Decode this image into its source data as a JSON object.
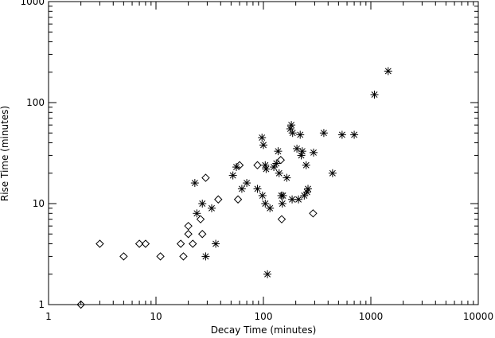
{
  "chart_data": {
    "type": "scatter",
    "title": "",
    "xlabel": "Decay Time (minutes)",
    "ylabel": "Rise Time (minutes)",
    "xscale": "log",
    "yscale": "log",
    "xlim": [
      1,
      10000
    ],
    "ylim": [
      1,
      1000
    ],
    "x_ticks": [
      1,
      10,
      100,
      1000,
      10000
    ],
    "x_tick_labels": [
      "1",
      "10",
      "100",
      "1000",
      "10000"
    ],
    "y_ticks": [
      1,
      10,
      100,
      1000
    ],
    "y_tick_labels": [
      "1",
      "10",
      "100",
      "1000"
    ],
    "grid": false,
    "series": [
      {
        "marker": "diamond",
        "points": [
          [
            2,
            1
          ],
          [
            3,
            4
          ],
          [
            5,
            3
          ],
          [
            7,
            4
          ],
          [
            8,
            4
          ],
          [
            11,
            3
          ],
          [
            17,
            4
          ],
          [
            18,
            3
          ],
          [
            20,
            5
          ],
          [
            20,
            6
          ],
          [
            22,
            4
          ],
          [
            26,
            7
          ],
          [
            27,
            5
          ],
          [
            29,
            18
          ],
          [
            38,
            11
          ],
          [
            58,
            11
          ],
          [
            60,
            24
          ],
          [
            88,
            24
          ],
          [
            145,
            27
          ],
          [
            148,
            7
          ],
          [
            290,
            8
          ]
        ]
      },
      {
        "marker": "asterisk",
        "points": [
          [
            23,
            16
          ],
          [
            24,
            8
          ],
          [
            27,
            10
          ],
          [
            29,
            3
          ],
          [
            33,
            9
          ],
          [
            36,
            4
          ],
          [
            52,
            19
          ],
          [
            56,
            23
          ],
          [
            63,
            14
          ],
          [
            70,
            16
          ],
          [
            88,
            14
          ],
          [
            97,
            45
          ],
          [
            100,
            38
          ],
          [
            98,
            12
          ],
          [
            104,
            10
          ],
          [
            106,
            22
          ],
          [
            104,
            24
          ],
          [
            109,
            2
          ],
          [
            115,
            9
          ],
          [
            125,
            23
          ],
          [
            132,
            25
          ],
          [
            137,
            33
          ],
          [
            140,
            20
          ],
          [
            147,
            12
          ],
          [
            150,
            10
          ],
          [
            152,
            12
          ],
          [
            165,
            18
          ],
          [
            178,
            55
          ],
          [
            182,
            60
          ],
          [
            185,
            11
          ],
          [
            187,
            50
          ],
          [
            205,
            35
          ],
          [
            212,
            11
          ],
          [
            220,
            48
          ],
          [
            225,
            30
          ],
          [
            230,
            33
          ],
          [
            240,
            12
          ],
          [
            250,
            24
          ],
          [
            255,
            13
          ],
          [
            260,
            14
          ],
          [
            293,
            32
          ],
          [
            365,
            50
          ],
          [
            440,
            20
          ],
          [
            540,
            48
          ],
          [
            700,
            48
          ],
          [
            1080,
            120
          ],
          [
            1450,
            205
          ]
        ]
      }
    ]
  }
}
